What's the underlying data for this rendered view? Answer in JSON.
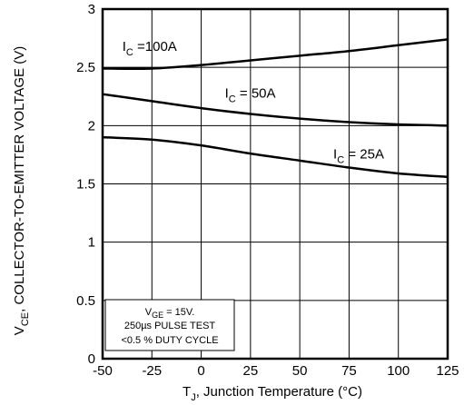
{
  "chart_data": {
    "type": "line",
    "xlabel_parts": {
      "prefix": "T",
      "sub": "J",
      "rest": ", Junction Temperature (°C)"
    },
    "ylabel_parts": {
      "prefix": "V",
      "sub": "CE",
      "rest": ", COLLECTOR-TO-EMITTER VOLTAGE (V)"
    },
    "xlim": [
      -50,
      125
    ],
    "ylim": [
      0,
      3
    ],
    "x_ticks": [
      -50,
      -25,
      0,
      25,
      50,
      75,
      100,
      125
    ],
    "y_ticks": [
      0,
      0.5,
      1,
      1.5,
      2,
      2.5,
      3
    ],
    "x_tick_labels": [
      "-50",
      "-25",
      "0",
      "25",
      "50",
      "75",
      "100",
      "125"
    ],
    "y_tick_labels": [
      "0",
      "0.5",
      "1",
      "1.5",
      "2",
      "2.5",
      "3"
    ],
    "grid": true,
    "series": [
      {
        "name": "I_C =100A",
        "label_parts": {
          "prefix": "I",
          "sub": "C",
          "rest": " =100A"
        },
        "x": [
          -50,
          -25,
          0,
          25,
          50,
          75,
          100,
          125
        ],
        "y": [
          2.49,
          2.49,
          2.52,
          2.56,
          2.6,
          2.64,
          2.69,
          2.74
        ]
      },
      {
        "name": "I_C = 50A",
        "label_parts": {
          "prefix": "I",
          "sub": "C",
          "rest": " = 50A"
        },
        "x": [
          -50,
          -25,
          0,
          25,
          50,
          75,
          100,
          125
        ],
        "y": [
          2.27,
          2.21,
          2.15,
          2.1,
          2.06,
          2.03,
          2.01,
          2.0
        ]
      },
      {
        "name": "I_C = 25A",
        "label_parts": {
          "prefix": "I",
          "sub": "C",
          "rest": " = 25A"
        },
        "x": [
          -50,
          -25,
          0,
          25,
          50,
          75,
          100,
          125
        ],
        "y": [
          1.9,
          1.88,
          1.83,
          1.76,
          1.7,
          1.64,
          1.59,
          1.56
        ]
      }
    ],
    "annotation": {
      "line1_parts": {
        "prefix": "V",
        "sub": "GE",
        "rest": " = 15V."
      },
      "line2": "250µs PULSE TEST",
      "line3": "<0.5 % DUTY CYCLE"
    }
  }
}
